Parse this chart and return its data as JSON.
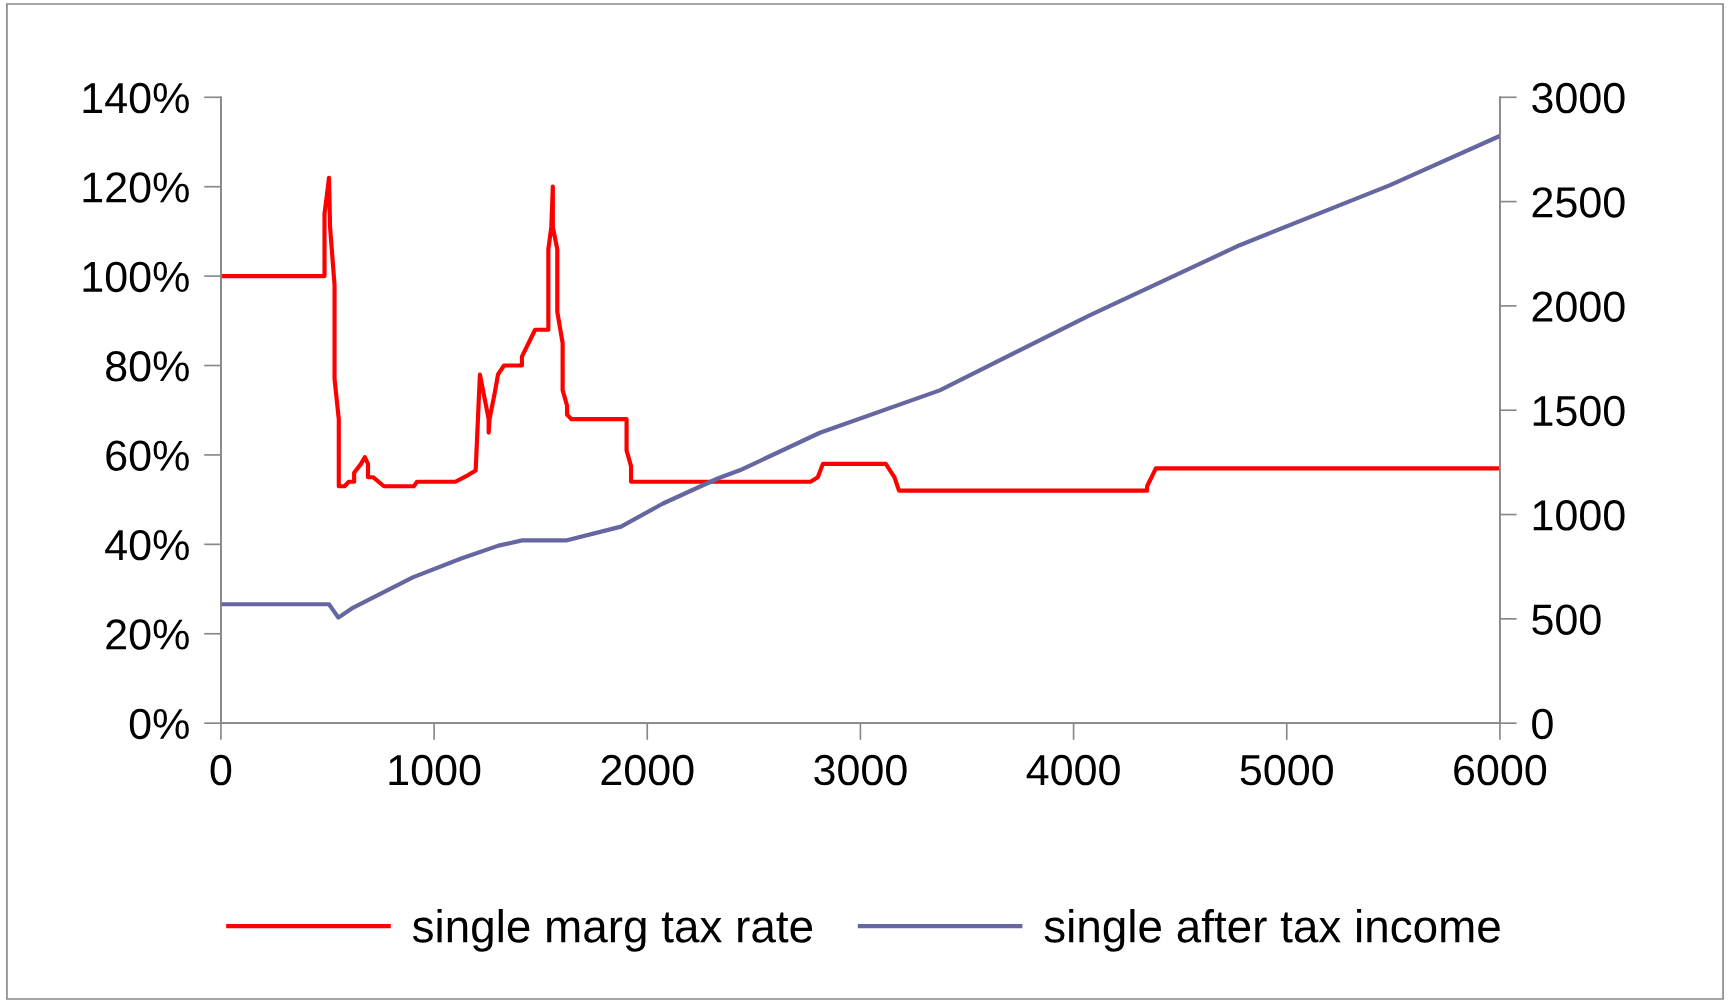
{
  "chart_data": {
    "type": "line",
    "series": [
      {
        "name": "single marg tax rate",
        "color": "#ff0000",
        "axis": "y",
        "x": [
          0,
          486,
          486,
          497,
          507,
          512,
          533,
          533,
          553,
          553,
          580,
          600,
          625,
          625,
          657,
          675,
          690,
          690,
          715,
          765,
          905,
          920,
          1100,
          1160,
          1195,
          1195,
          1215,
          1256,
          1256,
          1260,
          1285,
          1300,
          1328,
          1412,
          1412,
          1474,
          1536,
          1536,
          1550,
          1557,
          1557,
          1578,
          1578,
          1603,
          1603,
          1624,
          1624,
          1645,
          1903,
          1903,
          1924,
          1924,
          2766,
          2800,
          2824,
          3119,
          3160,
          3181,
          4345,
          4345,
          4386,
          6000
        ],
        "values": [
          100,
          100,
          114,
          118,
          122,
          111,
          98,
          77,
          68,
          53,
          53,
          54,
          54,
          56,
          58,
          59.5,
          58,
          55,
          55,
          53,
          53,
          54,
          54,
          55.5,
          56.5,
          56.5,
          78,
          68,
          65,
          68,
          74,
          78,
          80,
          80,
          82,
          88,
          88,
          106,
          111,
          120,
          111,
          106,
          92,
          85,
          74.5,
          71,
          69,
          68,
          68,
          61,
          57.5,
          54,
          54,
          55,
          58,
          58,
          55,
          52,
          52,
          53,
          57,
          57
        ]
      },
      {
        "name": "single after tax income",
        "color": "#6666a0",
        "axis": "y2",
        "x": [
          0,
          507,
          551,
          614,
          900,
          1127,
          1302,
          1413,
          1619,
          1877,
          2074,
          2333,
          2434,
          2810,
          3372,
          4075,
          4779,
          5482,
          6000
        ],
        "values": [
          570,
          570,
          506,
          550,
          699,
          789,
          851,
          876,
          876,
          942,
          1053,
          1174,
          1212,
          1392,
          1595,
          1955,
          2291,
          2578,
          2815
        ]
      }
    ],
    "xlim": [
      0,
      6000
    ],
    "xticks": [
      0,
      1000,
      2000,
      3000,
      4000,
      5000,
      6000
    ],
    "ylim": [
      0,
      140
    ],
    "yticks": [
      {
        "value": 0,
        "label": "0%"
      },
      {
        "value": 20,
        "label": "20%"
      },
      {
        "value": 40,
        "label": "40%"
      },
      {
        "value": 60,
        "label": "60%"
      },
      {
        "value": 80,
        "label": "80%"
      },
      {
        "value": 100,
        "label": "100%"
      },
      {
        "value": 120,
        "label": "120%"
      },
      {
        "value": 140,
        "label": "140%"
      }
    ],
    "y2lim": [
      0,
      3000
    ],
    "y2ticks": [
      0,
      500,
      1000,
      1500,
      2000,
      2500,
      3000
    ],
    "grid": false,
    "legend": "bottom",
    "marker": "none",
    "line_style": "solid"
  }
}
